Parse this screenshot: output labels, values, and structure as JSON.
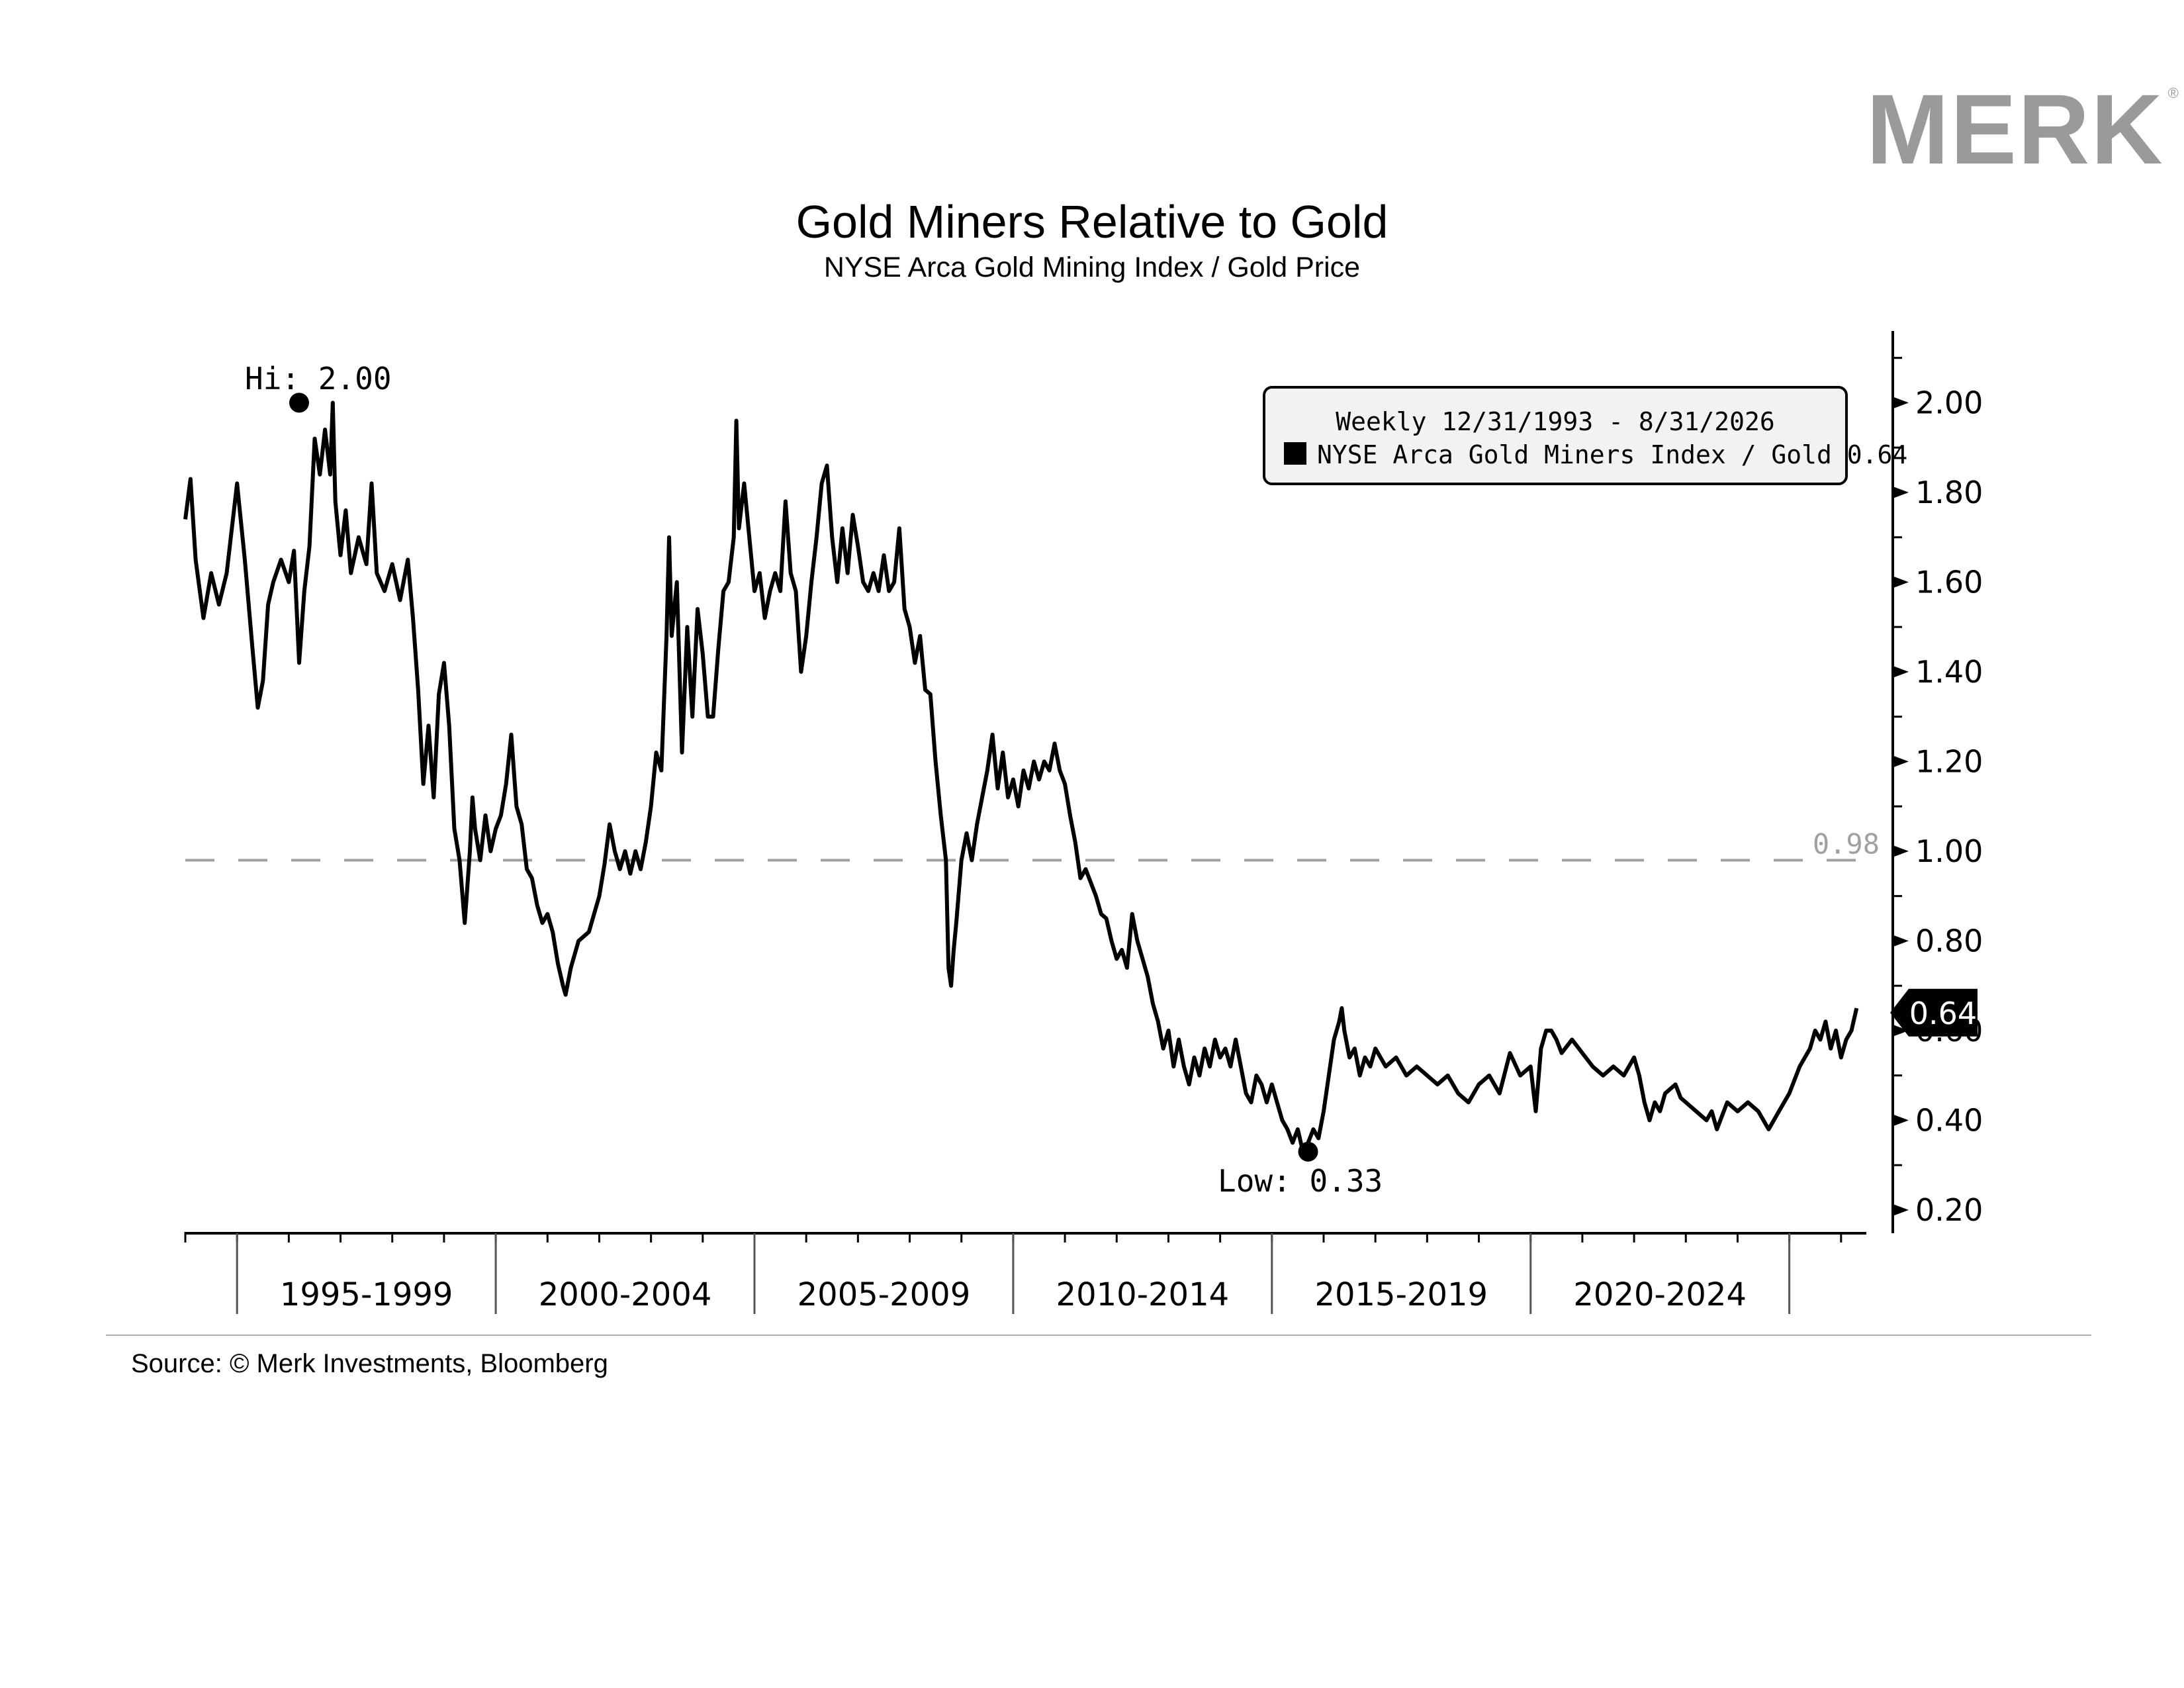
{
  "brand": {
    "name": "MERK",
    "mark": "®",
    "color": "#9a9a9a"
  },
  "source": "Source: © Merk Investments, Bloomberg",
  "chart_data": {
    "type": "line",
    "title": "Gold Miners Relative to Gold",
    "subtitle": "NYSE Arca Gold Mining Index / Gold Price",
    "legend": {
      "header": "Weekly 12/31/1993 - 8/31/2026",
      "entry": "NYSE Arca Gold Miners Index / Gold 0.64",
      "placement": "top-right"
    },
    "x_range": [
      1994.0,
      2027.0
    ],
    "ylim": [
      0.16,
      2.16
    ],
    "y_ticks": [
      0.2,
      0.4,
      0.6,
      0.8,
      1.0,
      1.2,
      1.4,
      1.6,
      1.8,
      2.0
    ],
    "y_tick_labels": [
      "0.20",
      "0.40",
      "0.60",
      "0.80",
      "1.00",
      "1.20",
      "1.40",
      "1.60",
      "1.80",
      "2.00"
    ],
    "x_period_labels": [
      {
        "label": "1995-1999",
        "start": 1995,
        "end": 2000
      },
      {
        "label": "2000-2004",
        "start": 2000,
        "end": 2005
      },
      {
        "label": "2005-2009",
        "start": 2005,
        "end": 2010
      },
      {
        "label": "2010-2014",
        "start": 2010,
        "end": 2015
      },
      {
        "label": "2015-2019",
        "start": 2015,
        "end": 2020
      },
      {
        "label": "2020-2024",
        "start": 2020,
        "end": 2025
      }
    ],
    "reference_line": {
      "value": 0.98,
      "label": "0.98",
      "style": "dashed",
      "color": "#a0a0a0"
    },
    "annotations": [
      {
        "label": "Hi: 2.00",
        "x": 1996.2,
        "y": 2.0
      },
      {
        "label": "Low: 0.33",
        "x": 2015.7,
        "y": 0.33
      }
    ],
    "last_value": {
      "label": "0.64",
      "value": 0.64
    },
    "series": [
      {
        "color": "#000000",
        "points": [
          [
            1994.0,
            1.74
          ],
          [
            1994.1,
            1.83
          ],
          [
            1994.2,
            1.65
          ],
          [
            1994.35,
            1.52
          ],
          [
            1994.5,
            1.62
          ],
          [
            1994.65,
            1.55
          ],
          [
            1994.8,
            1.62
          ],
          [
            1995.0,
            1.82
          ],
          [
            1995.15,
            1.65
          ],
          [
            1995.3,
            1.45
          ],
          [
            1995.4,
            1.32
          ],
          [
            1995.5,
            1.38
          ],
          [
            1995.6,
            1.55
          ],
          [
            1995.7,
            1.6
          ],
          [
            1995.85,
            1.65
          ],
          [
            1996.0,
            1.6
          ],
          [
            1996.1,
            1.67
          ],
          [
            1996.2,
            1.42
          ],
          [
            1996.3,
            1.58
          ],
          [
            1996.4,
            1.68
          ],
          [
            1996.5,
            1.92
          ],
          [
            1996.6,
            1.84
          ],
          [
            1996.7,
            1.94
          ],
          [
            1996.8,
            1.84
          ],
          [
            1996.85,
            2.0
          ],
          [
            1996.9,
            1.78
          ],
          [
            1997.0,
            1.66
          ],
          [
            1997.1,
            1.76
          ],
          [
            1997.2,
            1.62
          ],
          [
            1997.35,
            1.7
          ],
          [
            1997.5,
            1.64
          ],
          [
            1997.6,
            1.82
          ],
          [
            1997.7,
            1.62
          ],
          [
            1997.85,
            1.58
          ],
          [
            1998.0,
            1.64
          ],
          [
            1998.15,
            1.56
          ],
          [
            1998.3,
            1.65
          ],
          [
            1998.4,
            1.52
          ],
          [
            1998.5,
            1.36
          ],
          [
            1998.6,
            1.15
          ],
          [
            1998.7,
            1.28
          ],
          [
            1998.8,
            1.12
          ],
          [
            1998.9,
            1.35
          ],
          [
            1999.0,
            1.42
          ],
          [
            1999.1,
            1.28
          ],
          [
            1999.2,
            1.05
          ],
          [
            1999.3,
            0.98
          ],
          [
            1999.4,
            0.84
          ],
          [
            1999.5,
            1.0
          ],
          [
            1999.55,
            1.12
          ],
          [
            1999.6,
            1.05
          ],
          [
            1999.7,
            0.98
          ],
          [
            1999.8,
            1.08
          ],
          [
            1999.9,
            1.0
          ],
          [
            2000.0,
            1.05
          ],
          [
            2000.1,
            1.08
          ],
          [
            2000.2,
            1.15
          ],
          [
            2000.3,
            1.26
          ],
          [
            2000.4,
            1.1
          ],
          [
            2000.5,
            1.06
          ],
          [
            2000.6,
            0.96
          ],
          [
            2000.7,
            0.94
          ],
          [
            2000.8,
            0.88
          ],
          [
            2000.9,
            0.84
          ],
          [
            2001.0,
            0.86
          ],
          [
            2001.1,
            0.82
          ],
          [
            2001.2,
            0.75
          ],
          [
            2001.3,
            0.7
          ],
          [
            2001.35,
            0.68
          ],
          [
            2001.45,
            0.74
          ],
          [
            2001.6,
            0.8
          ],
          [
            2001.8,
            0.82
          ],
          [
            2002.0,
            0.9
          ],
          [
            2002.1,
            0.97
          ],
          [
            2002.2,
            1.06
          ],
          [
            2002.3,
            1.0
          ],
          [
            2002.4,
            0.96
          ],
          [
            2002.5,
            1.0
          ],
          [
            2002.6,
            0.95
          ],
          [
            2002.7,
            1.0
          ],
          [
            2002.8,
            0.96
          ],
          [
            2002.9,
            1.02
          ],
          [
            2003.0,
            1.1
          ],
          [
            2003.1,
            1.22
          ],
          [
            2003.2,
            1.18
          ],
          [
            2003.3,
            1.48
          ],
          [
            2003.35,
            1.7
          ],
          [
            2003.4,
            1.48
          ],
          [
            2003.5,
            1.6
          ],
          [
            2003.6,
            1.22
          ],
          [
            2003.7,
            1.5
          ],
          [
            2003.8,
            1.3
          ],
          [
            2003.9,
            1.54
          ],
          [
            2004.0,
            1.44
          ],
          [
            2004.1,
            1.3
          ],
          [
            2004.2,
            1.3
          ],
          [
            2004.3,
            1.45
          ],
          [
            2004.4,
            1.58
          ],
          [
            2004.5,
            1.6
          ],
          [
            2004.6,
            1.7
          ],
          [
            2004.65,
            1.96
          ],
          [
            2004.7,
            1.72
          ],
          [
            2004.8,
            1.82
          ],
          [
            2004.9,
            1.7
          ],
          [
            2005.0,
            1.58
          ],
          [
            2005.1,
            1.62
          ],
          [
            2005.2,
            1.52
          ],
          [
            2005.3,
            1.58
          ],
          [
            2005.4,
            1.62
          ],
          [
            2005.5,
            1.58
          ],
          [
            2005.6,
            1.78
          ],
          [
            2005.7,
            1.62
          ],
          [
            2005.8,
            1.58
          ],
          [
            2005.9,
            1.4
          ],
          [
            2006.0,
            1.48
          ],
          [
            2006.1,
            1.6
          ],
          [
            2006.2,
            1.7
          ],
          [
            2006.3,
            1.82
          ],
          [
            2006.4,
            1.86
          ],
          [
            2006.5,
            1.7
          ],
          [
            2006.6,
            1.6
          ],
          [
            2006.7,
            1.72
          ],
          [
            2006.8,
            1.62
          ],
          [
            2006.9,
            1.75
          ],
          [
            2007.0,
            1.68
          ],
          [
            2007.1,
            1.6
          ],
          [
            2007.2,
            1.58
          ],
          [
            2007.3,
            1.62
          ],
          [
            2007.4,
            1.58
          ],
          [
            2007.5,
            1.66
          ],
          [
            2007.6,
            1.58
          ],
          [
            2007.7,
            1.6
          ],
          [
            2007.8,
            1.72
          ],
          [
            2007.9,
            1.54
          ],
          [
            2008.0,
            1.5
          ],
          [
            2008.1,
            1.42
          ],
          [
            2008.2,
            1.48
          ],
          [
            2008.3,
            1.36
          ],
          [
            2008.4,
            1.35
          ],
          [
            2008.5,
            1.2
          ],
          [
            2008.6,
            1.08
          ],
          [
            2008.7,
            0.98
          ],
          [
            2008.75,
            0.74
          ],
          [
            2008.8,
            0.7
          ],
          [
            2008.85,
            0.78
          ],
          [
            2008.9,
            0.84
          ],
          [
            2009.0,
            0.98
          ],
          [
            2009.1,
            1.04
          ],
          [
            2009.2,
            0.98
          ],
          [
            2009.3,
            1.06
          ],
          [
            2009.4,
            1.12
          ],
          [
            2009.5,
            1.18
          ],
          [
            2009.6,
            1.26
          ],
          [
            2009.7,
            1.14
          ],
          [
            2009.8,
            1.22
          ],
          [
            2009.9,
            1.12
          ],
          [
            2010.0,
            1.16
          ],
          [
            2010.1,
            1.1
          ],
          [
            2010.2,
            1.18
          ],
          [
            2010.3,
            1.14
          ],
          [
            2010.4,
            1.2
          ],
          [
            2010.5,
            1.16
          ],
          [
            2010.6,
            1.2
          ],
          [
            2010.7,
            1.18
          ],
          [
            2010.8,
            1.24
          ],
          [
            2010.9,
            1.18
          ],
          [
            2011.0,
            1.15
          ],
          [
            2011.1,
            1.08
          ],
          [
            2011.2,
            1.02
          ],
          [
            2011.3,
            0.94
          ],
          [
            2011.4,
            0.96
          ],
          [
            2011.5,
            0.93
          ],
          [
            2011.6,
            0.9
          ],
          [
            2011.7,
            0.86
          ],
          [
            2011.8,
            0.85
          ],
          [
            2011.9,
            0.8
          ],
          [
            2012.0,
            0.76
          ],
          [
            2012.1,
            0.78
          ],
          [
            2012.2,
            0.74
          ],
          [
            2012.3,
            0.86
          ],
          [
            2012.4,
            0.8
          ],
          [
            2012.5,
            0.76
          ],
          [
            2012.6,
            0.72
          ],
          [
            2012.7,
            0.66
          ],
          [
            2012.8,
            0.62
          ],
          [
            2012.9,
            0.56
          ],
          [
            2013.0,
            0.6
          ],
          [
            2013.1,
            0.52
          ],
          [
            2013.2,
            0.58
          ],
          [
            2013.3,
            0.52
          ],
          [
            2013.4,
            0.48
          ],
          [
            2013.5,
            0.54
          ],
          [
            2013.6,
            0.5
          ],
          [
            2013.7,
            0.56
          ],
          [
            2013.8,
            0.52
          ],
          [
            2013.9,
            0.58
          ],
          [
            2014.0,
            0.54
          ],
          [
            2014.1,
            0.56
          ],
          [
            2014.2,
            0.52
          ],
          [
            2014.3,
            0.58
          ],
          [
            2014.4,
            0.52
          ],
          [
            2014.5,
            0.46
          ],
          [
            2014.6,
            0.44
          ],
          [
            2014.7,
            0.5
          ],
          [
            2014.8,
            0.48
          ],
          [
            2014.9,
            0.44
          ],
          [
            2015.0,
            0.48
          ],
          [
            2015.1,
            0.44
          ],
          [
            2015.2,
            0.4
          ],
          [
            2015.3,
            0.38
          ],
          [
            2015.4,
            0.35
          ],
          [
            2015.5,
            0.38
          ],
          [
            2015.6,
            0.33
          ],
          [
            2015.7,
            0.35
          ],
          [
            2015.8,
            0.38
          ],
          [
            2015.9,
            0.36
          ],
          [
            2016.0,
            0.42
          ],
          [
            2016.1,
            0.5
          ],
          [
            2016.2,
            0.58
          ],
          [
            2016.3,
            0.62
          ],
          [
            2016.35,
            0.65
          ],
          [
            2016.4,
            0.6
          ],
          [
            2016.5,
            0.54
          ],
          [
            2016.6,
            0.56
          ],
          [
            2016.7,
            0.5
          ],
          [
            2016.8,
            0.54
          ],
          [
            2016.9,
            0.52
          ],
          [
            2017.0,
            0.56
          ],
          [
            2017.2,
            0.52
          ],
          [
            2017.4,
            0.54
          ],
          [
            2017.6,
            0.5
          ],
          [
            2017.8,
            0.52
          ],
          [
            2018.0,
            0.5
          ],
          [
            2018.2,
            0.48
          ],
          [
            2018.4,
            0.5
          ],
          [
            2018.6,
            0.46
          ],
          [
            2018.8,
            0.44
          ],
          [
            2019.0,
            0.48
          ],
          [
            2019.2,
            0.5
          ],
          [
            2019.4,
            0.46
          ],
          [
            2019.6,
            0.55
          ],
          [
            2019.8,
            0.5
          ],
          [
            2020.0,
            0.52
          ],
          [
            2020.1,
            0.42
          ],
          [
            2020.2,
            0.56
          ],
          [
            2020.3,
            0.6
          ],
          [
            2020.4,
            0.6
          ],
          [
            2020.5,
            0.58
          ],
          [
            2020.6,
            0.55
          ],
          [
            2020.8,
            0.58
          ],
          [
            2021.0,
            0.55
          ],
          [
            2021.2,
            0.52
          ],
          [
            2021.4,
            0.5
          ],
          [
            2021.6,
            0.52
          ],
          [
            2021.8,
            0.5
          ],
          [
            2022.0,
            0.54
          ],
          [
            2022.1,
            0.5
          ],
          [
            2022.2,
            0.44
          ],
          [
            2022.3,
            0.4
          ],
          [
            2022.4,
            0.44
          ],
          [
            2022.5,
            0.42
          ],
          [
            2022.6,
            0.46
          ],
          [
            2022.8,
            0.48
          ],
          [
            2022.9,
            0.45
          ],
          [
            2023.0,
            0.44
          ],
          [
            2023.2,
            0.42
          ],
          [
            2023.4,
            0.4
          ],
          [
            2023.5,
            0.42
          ],
          [
            2023.6,
            0.38
          ],
          [
            2023.8,
            0.44
          ],
          [
            2024.0,
            0.42
          ],
          [
            2024.2,
            0.44
          ],
          [
            2024.4,
            0.42
          ],
          [
            2024.6,
            0.38
          ],
          [
            2024.8,
            0.42
          ],
          [
            2025.0,
            0.46
          ],
          [
            2025.2,
            0.52
          ],
          [
            2025.4,
            0.56
          ],
          [
            2025.5,
            0.6
          ],
          [
            2025.6,
            0.58
          ],
          [
            2025.7,
            0.62
          ],
          [
            2025.8,
            0.56
          ],
          [
            2025.9,
            0.6
          ],
          [
            2026.0,
            0.54
          ],
          [
            2026.1,
            0.58
          ],
          [
            2026.2,
            0.6
          ],
          [
            2026.3,
            0.65
          ]
        ]
      }
    ]
  }
}
